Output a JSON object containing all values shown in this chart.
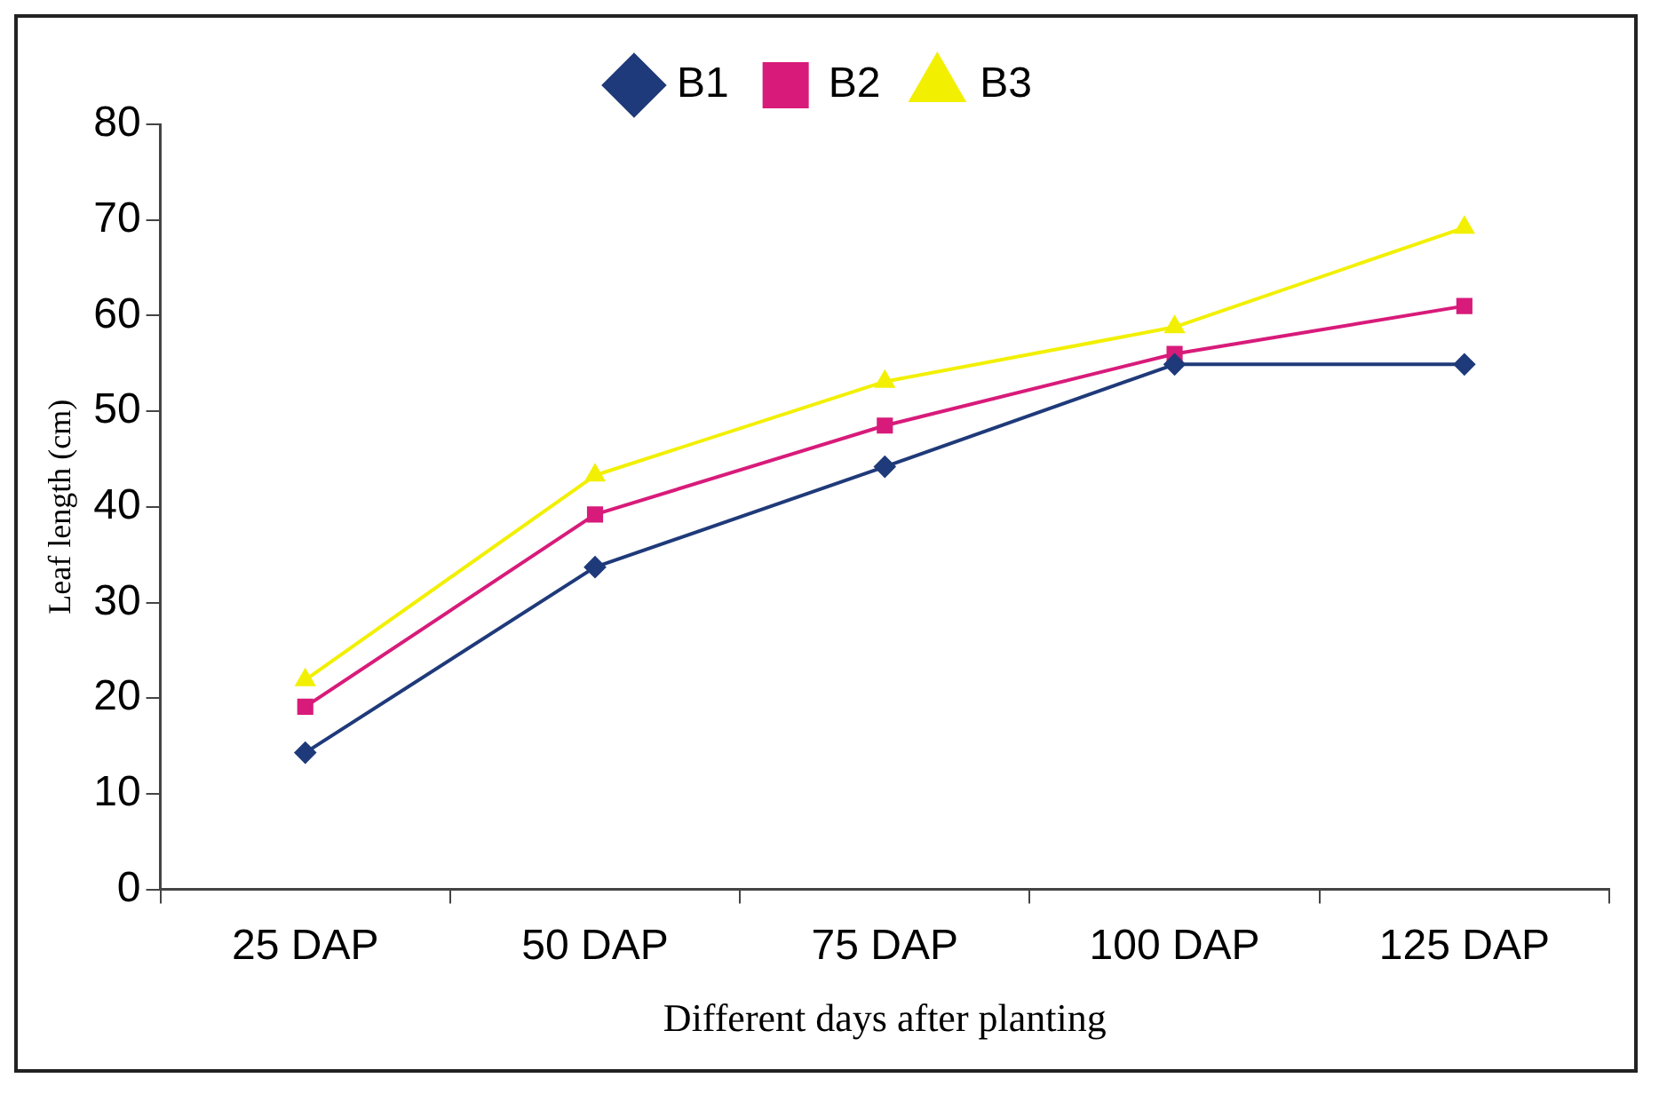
{
  "chart_data": {
    "type": "line",
    "xlabel": "Different days after planting",
    "ylabel": "Leaf length (cm)",
    "categories": [
      "25 DAP",
      "50 DAP",
      "75 DAP",
      "100 DAP",
      "125 DAP"
    ],
    "series": [
      {
        "name": "B1",
        "color": "#1f3a7a",
        "marker": "diamond",
        "values": [
          14.3,
          33.7,
          44.2,
          54.9,
          54.9
        ]
      },
      {
        "name": "B2",
        "color": "#d81b7a",
        "marker": "square",
        "values": [
          19.1,
          39.2,
          48.5,
          56,
          61
        ]
      },
      {
        "name": "B3",
        "color": "#f2f000",
        "marker": "triangle",
        "values": [
          21.9,
          43.3,
          53.1,
          58.8,
          69.2
        ]
      }
    ],
    "ylim": [
      0,
      80
    ],
    "yticks": [
      0,
      10,
      20,
      30,
      40,
      50,
      60,
      70,
      80
    ],
    "grid": false,
    "legend": "top",
    "line_style": "solid"
  }
}
